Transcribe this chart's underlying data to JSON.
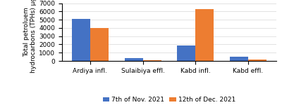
{
  "categories": [
    "Ardiya infl.",
    "Sulaibiya effl.",
    "Kabd infl.",
    "Kabd effl."
  ],
  "series": [
    {
      "label": "7th of Nov. 2021",
      "color": "#4472C4",
      "values": [
        5100,
        320,
        1850,
        500
      ]
    },
    {
      "label": "12th of Dec. 2021",
      "color": "#ED7D31",
      "values": [
        4000,
        110,
        6250,
        200
      ]
    }
  ],
  "ylabel": "Total petroluem\nhydrocarbons (TPHs) μg/L",
  "ylim": [
    0,
    7000
  ],
  "yticks": [
    0,
    1000,
    2000,
    3000,
    4000,
    5000,
    6000,
    7000
  ],
  "background_color": "#ffffff",
  "bar_width": 0.35,
  "ylabel_fontsize": 6.5,
  "tick_fontsize": 6.5,
  "legend_fontsize": 6.5,
  "xlabel_fontsize": 6.5
}
